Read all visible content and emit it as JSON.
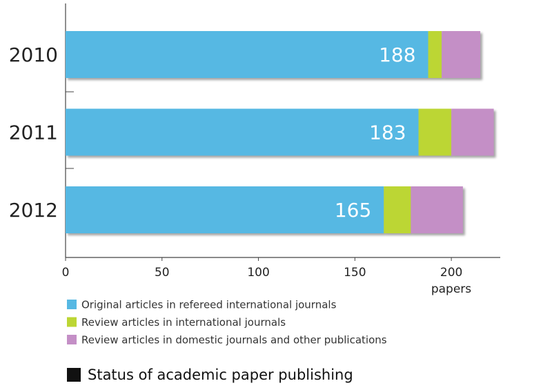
{
  "chart_data": {
    "type": "stacked_barh",
    "title": "Status of academic paper publishing",
    "x_label": "papers",
    "categories": [
      "2010",
      "2011",
      "2012"
    ],
    "series": [
      {
        "name": "Original articles in refereed international journals",
        "color": "#56b8e3",
        "values": [
          188,
          183,
          165
        ]
      },
      {
        "name": "Review articles in international journals",
        "color": "#bcd634",
        "values": [
          7,
          17,
          14
        ]
      },
      {
        "name": "Review articles in domestic journals and other publications",
        "color": "#c48fc6",
        "values": [
          20,
          22,
          27
        ]
      }
    ],
    "data_labels_series": 0,
    "xlim": [
      0,
      225
    ],
    "xticks": [
      0,
      50,
      100,
      150,
      200
    ]
  }
}
